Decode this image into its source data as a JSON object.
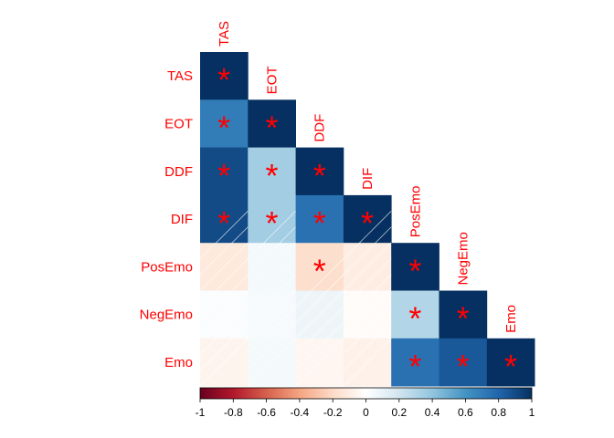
{
  "chart_data": {
    "type": "heatmap",
    "variables": [
      "TAS",
      "EOT",
      "DDF",
      "DIF",
      "PosEmo",
      "NegEmo",
      "Emo"
    ],
    "values": [
      [
        1.0
      ],
      [
        0.7,
        1.0
      ],
      [
        0.9,
        0.35,
        1.0
      ],
      [
        0.9,
        0.35,
        0.75,
        1.0
      ],
      [
        -0.12,
        0.05,
        -0.18,
        -0.1,
        1.0
      ],
      [
        0.02,
        0.04,
        0.08,
        -0.02,
        0.3,
        1.0
      ],
      [
        -0.06,
        0.05,
        -0.05,
        -0.08,
        0.75,
        0.85,
        1.0
      ]
    ],
    "significant": [
      [
        true
      ],
      [
        true,
        true
      ],
      [
        true,
        true,
        true
      ],
      [
        true,
        true,
        true,
        true
      ],
      [
        false,
        false,
        true,
        false,
        true
      ],
      [
        false,
        false,
        false,
        false,
        true,
        true
      ],
      [
        false,
        false,
        false,
        false,
        true,
        true,
        true
      ]
    ],
    "star_symbol": "*",
    "layout": "lower",
    "colorbar": {
      "range": [
        -1,
        1
      ],
      "ticks": [
        "-1",
        "-0.8",
        "-0.6",
        "-0.4",
        "-0.2",
        "0",
        "0.2",
        "0.4",
        "0.6",
        "0.8",
        "1"
      ],
      "palette": [
        "#67001f",
        "#b2182b",
        "#d6604d",
        "#f4a582",
        "#fddbc7",
        "#ffffff",
        "#d1e5f0",
        "#92c5de",
        "#4393c3",
        "#2166ac",
        "#053061"
      ]
    },
    "label_color": "#ff0000",
    "title": "",
    "xlabel": "",
    "ylabel": ""
  }
}
